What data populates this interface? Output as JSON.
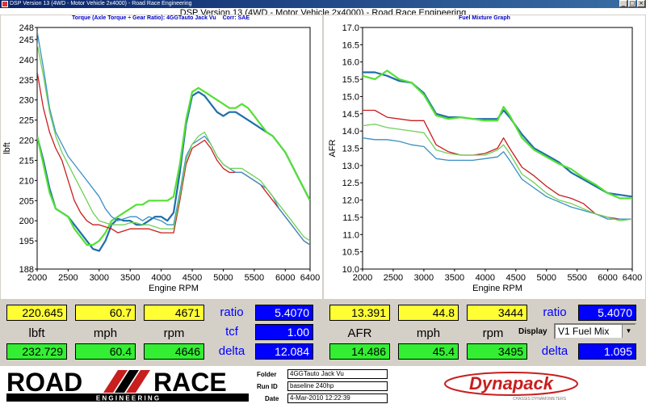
{
  "window": {
    "title": "DSP Version 13 (4WD - Motor Vehicle 2x4000) - Road Race Engineering",
    "heading": "DSP Version 13 (4WD - Motor Vehicle 2x4000) - Road Race Engineering",
    "buttons": [
      "_",
      "□",
      "×"
    ]
  },
  "colors": {
    "yellow": "#ffff33",
    "green": "#33ee33",
    "blue_box": "#0000ff",
    "series_dark_blue": "#1f6fa8",
    "series_light_green": "#55e035",
    "series_red": "#c81e1e",
    "series_light_blue": "#3a8fc4",
    "series_mid_green": "#6fd05a"
  },
  "left_panel": {
    "title": "Torque (Axle Torque ÷ Gear Ratio): 4GGTauto Jack Vu",
    "corr": "Corr: SAE",
    "ylabel": "lbft",
    "xlabel": "Engine RPM"
  },
  "right_panel": {
    "title": "Fuel Mixture Graph",
    "ylabel": "AFR",
    "xlabel": "Engine RPM"
  },
  "chart_data": [
    {
      "type": "line",
      "title": "Torque (Axle Torque ÷ Gear Ratio): 4GGTauto Jack Vu",
      "xlabel": "Engine RPM",
      "ylabel": "lbft",
      "xlim": [
        2000,
        6400
      ],
      "ylim": [
        188,
        248
      ],
      "x_ticks": [
        2000,
        2500,
        3000,
        3500,
        4000,
        4500,
        5000,
        5500,
        6000,
        6400
      ],
      "y_ticks": [
        188,
        195,
        200,
        205,
        210,
        215,
        220,
        225,
        230,
        235,
        240,
        245,
        248
      ],
      "grid": false,
      "series": [
        {
          "color": "#1f6fa8",
          "x": [
            2000,
            2100,
            2200,
            2300,
            2400,
            2500,
            2600,
            2700,
            2800,
            2900,
            3000,
            3100,
            3200,
            3300,
            3400,
            3500,
            3600,
            3700,
            3800,
            3900,
            4000,
            4100,
            4200,
            4300,
            4400,
            4500,
            4600,
            4700,
            4800,
            4900,
            5000,
            5100,
            5200,
            5300,
            5400,
            5500,
            5600,
            5700,
            5800,
            5900,
            6000,
            6100,
            6200,
            6300,
            6400
          ],
          "y": [
            221,
            215,
            208,
            203,
            202,
            201,
            199,
            197,
            195,
            193,
            192.5,
            195,
            199,
            200.5,
            200,
            200,
            199,
            199,
            200,
            201,
            201,
            200,
            202,
            212,
            224,
            231,
            232,
            231,
            229,
            227,
            226,
            227,
            227,
            226,
            225,
            224,
            223,
            222,
            221,
            219,
            217,
            214,
            211,
            208,
            205
          ]
        },
        {
          "color": "#55e035",
          "x": [
            2000,
            2100,
            2200,
            2300,
            2400,
            2500,
            2600,
            2700,
            2800,
            2900,
            3000,
            3100,
            3200,
            3300,
            3400,
            3500,
            3600,
            3700,
            3800,
            3900,
            4000,
            4100,
            4200,
            4300,
            4400,
            4500,
            4600,
            4700,
            4800,
            4900,
            5000,
            5100,
            5200,
            5300,
            5400,
            5500,
            5600,
            5700,
            5800,
            5900,
            6000,
            6100,
            6200,
            6300,
            6400
          ],
          "y": [
            221,
            214,
            207,
            203,
            202,
            201,
            198,
            196,
            194,
            194,
            195,
            197,
            200,
            201,
            202,
            203,
            204,
            204,
            205,
            205,
            205,
            205,
            206,
            214,
            225,
            232,
            233,
            232,
            231,
            230,
            229,
            228,
            228,
            229,
            228,
            226,
            224,
            222,
            221,
            219,
            217,
            214,
            211,
            208,
            205
          ]
        },
        {
          "color": "#c81e1e",
          "x": [
            2000,
            2100,
            2200,
            2300,
            2400,
            2500,
            2600,
            2700,
            2800,
            2900,
            3000,
            3100,
            3200,
            3300,
            3400,
            3500,
            3600,
            3700,
            3800,
            3900,
            4000,
            4100,
            4200,
            4300,
            4400,
            4500,
            4600,
            4700,
            4800,
            4900,
            5000,
            5100,
            5200,
            5300,
            5400,
            5500,
            5600,
            5700,
            5800,
            5900,
            6000,
            6100,
            6200,
            6300,
            6400
          ],
          "y": [
            237,
            228,
            222,
            218,
            215,
            210,
            205,
            202,
            200,
            199,
            199,
            198.5,
            198,
            197,
            197.5,
            198,
            198,
            198,
            198,
            197.5,
            197,
            197,
            197,
            205,
            214,
            218,
            219,
            220,
            218,
            215,
            213,
            212,
            212,
            212,
            211,
            210,
            209,
            207,
            205,
            203,
            201,
            199,
            197,
            195,
            194
          ]
        },
        {
          "color": "#3a8fc4",
          "x": [
            2000,
            2100,
            2200,
            2300,
            2400,
            2500,
            2600,
            2700,
            2800,
            2900,
            3000,
            3100,
            3200,
            3300,
            3400,
            3500,
            3600,
            3700,
            3800,
            3900,
            4000,
            4100,
            4200,
            4300,
            4400,
            4500,
            4600,
            4700,
            4800,
            4900,
            5000,
            5100,
            5200,
            5300,
            5400,
            5500,
            5600,
            5700,
            5800,
            5900,
            6000,
            6100,
            6200,
            6300,
            6400
          ],
          "y": [
            247,
            238,
            228,
            222,
            219,
            216,
            214,
            212,
            210,
            208,
            206,
            203,
            201,
            200,
            200.5,
            201,
            201,
            200,
            201,
            200.5,
            200,
            199,
            199,
            207,
            216,
            219,
            220,
            221,
            219,
            216,
            214,
            213,
            212,
            212,
            211,
            210,
            209,
            208,
            206,
            203,
            201,
            199,
            197,
            195,
            194
          ]
        },
        {
          "color": "#6fd05a",
          "x": [
            2000,
            2100,
            2200,
            2300,
            2400,
            2500,
            2600,
            2700,
            2800,
            2900,
            3000,
            3100,
            3200,
            3300,
            3400,
            3500,
            3600,
            3700,
            3800,
            3900,
            4000,
            4100,
            4200,
            4300,
            4400,
            4500,
            4600,
            4700,
            4800,
            4900,
            5000,
            5100,
            5200,
            5300,
            5400,
            5500,
            5600,
            5700,
            5800,
            5900,
            6000,
            6100,
            6200,
            6300,
            6400
          ],
          "y": [
            244,
            236,
            227,
            221,
            217,
            214,
            211,
            208,
            205,
            202,
            200,
            199.5,
            199,
            199,
            199,
            199.5,
            199.5,
            199,
            199,
            198.5,
            198,
            198,
            198,
            206,
            215,
            219,
            221,
            222,
            219,
            216,
            214,
            213,
            213,
            213,
            212,
            211,
            210,
            208,
            206,
            204,
            202,
            200,
            198,
            196,
            195
          ]
        }
      ]
    },
    {
      "type": "line",
      "title": "Fuel Mixture Graph",
      "xlabel": "Engine RPM",
      "ylabel": "AFR",
      "xlim": [
        2000,
        6400
      ],
      "ylim": [
        10.0,
        17.0
      ],
      "x_ticks": [
        2000,
        2500,
        3000,
        3500,
        4000,
        4500,
        5000,
        5500,
        6000,
        6400
      ],
      "y_ticks": [
        10.0,
        10.5,
        11.0,
        11.5,
        12.0,
        12.5,
        13.0,
        13.5,
        14.0,
        14.5,
        15.0,
        15.5,
        16.0,
        16.5,
        17.0
      ],
      "grid": false,
      "series": [
        {
          "color": "#1f6fa8",
          "x": [
            2000,
            2200,
            2400,
            2600,
            2800,
            3000,
            3200,
            3400,
            3600,
            3800,
            4000,
            4200,
            4300,
            4400,
            4600,
            4800,
            5000,
            5200,
            5400,
            5600,
            5800,
            6000,
            6200,
            6400
          ],
          "y": [
            15.7,
            15.7,
            15.6,
            15.45,
            15.4,
            15.1,
            14.5,
            14.4,
            14.4,
            14.35,
            14.35,
            14.35,
            14.6,
            14.4,
            13.9,
            13.5,
            13.3,
            13.1,
            12.8,
            12.6,
            12.4,
            12.2,
            12.15,
            12.1
          ]
        },
        {
          "color": "#55e035",
          "x": [
            2000,
            2200,
            2400,
            2600,
            2800,
            3000,
            3200,
            3400,
            3600,
            3800,
            4000,
            4200,
            4300,
            4400,
            4600,
            4800,
            5000,
            5200,
            5400,
            5600,
            5800,
            6000,
            6200,
            6400
          ],
          "y": [
            15.6,
            15.5,
            15.75,
            15.5,
            15.4,
            15.05,
            14.45,
            14.35,
            14.4,
            14.35,
            14.3,
            14.3,
            14.7,
            14.45,
            13.8,
            13.45,
            13.25,
            13.05,
            12.9,
            12.65,
            12.45,
            12.2,
            12.05,
            12.05
          ]
        },
        {
          "color": "#c81e1e",
          "x": [
            2000,
            2200,
            2400,
            2600,
            2800,
            3000,
            3200,
            3400,
            3600,
            3800,
            4000,
            4200,
            4300,
            4400,
            4600,
            4800,
            5000,
            5200,
            5400,
            5600,
            5800,
            6000,
            6200,
            6400
          ],
          "y": [
            14.6,
            14.6,
            14.4,
            14.35,
            14.3,
            14.3,
            13.6,
            13.4,
            13.3,
            13.3,
            13.35,
            13.5,
            13.8,
            13.5,
            12.95,
            12.7,
            12.4,
            12.15,
            12.05,
            11.9,
            11.6,
            11.5,
            11.45,
            11.45
          ]
        },
        {
          "color": "#3a8fc4",
          "x": [
            2000,
            2200,
            2400,
            2600,
            2800,
            3000,
            3200,
            3400,
            3600,
            3800,
            4000,
            4200,
            4300,
            4400,
            4600,
            4800,
            5000,
            5200,
            5400,
            5600,
            5800,
            6000,
            6200,
            6400
          ],
          "y": [
            13.8,
            13.75,
            13.75,
            13.7,
            13.6,
            13.55,
            13.2,
            13.15,
            13.15,
            13.15,
            13.2,
            13.25,
            13.4,
            13.15,
            12.6,
            12.35,
            12.1,
            11.95,
            11.8,
            11.7,
            11.6,
            11.45,
            11.45,
            11.45
          ]
        },
        {
          "color": "#6fd05a",
          "x": [
            2000,
            2200,
            2400,
            2600,
            2800,
            3000,
            3200,
            3400,
            3600,
            3800,
            4000,
            4200,
            4300,
            4400,
            4600,
            4800,
            5000,
            5200,
            5400,
            5600,
            5800,
            6000,
            6200,
            6400
          ],
          "y": [
            14.15,
            14.2,
            14.1,
            14.05,
            14.0,
            13.95,
            13.45,
            13.35,
            13.3,
            13.3,
            13.3,
            13.45,
            13.6,
            13.35,
            12.75,
            12.5,
            12.2,
            12.0,
            11.9,
            11.75,
            11.6,
            11.5,
            11.4,
            11.45
          ]
        }
      ]
    }
  ],
  "left_readout": {
    "row1": {
      "lbft": "220.645",
      "mph": "60.7",
      "rpm": "4671",
      "ratio_label": "ratio",
      "ratio": "5.4070"
    },
    "labels": {
      "lbft": "lbft",
      "mph": "mph",
      "rpm": "rpm",
      "tcf_label": "tcf"
    },
    "tcf": "1.00",
    "row3": {
      "lbft": "232.729",
      "mph": "60.4",
      "rpm": "4646",
      "delta_label": "delta",
      "delta": "12.084"
    }
  },
  "right_readout": {
    "row1": {
      "afr": "13.391",
      "mph": "44.8",
      "rpm": "3444",
      "ratio_label": "ratio",
      "ratio": "5.4070"
    },
    "labels": {
      "afr": "AFR",
      "mph": "mph",
      "rpm": "rpm",
      "display": "Display"
    },
    "display_select": "V1 Fuel Mix",
    "row3": {
      "afr": "14.486",
      "mph": "45.4",
      "rpm": "3495",
      "delta_label": "delta",
      "delta": "1.095"
    }
  },
  "footer": {
    "logo_top": "ROAD",
    "logo_right": "RACE",
    "logo_sub": "E N G I N E E R I N G",
    "folder_label": "Folder",
    "folder": "4GGTauto Jack Vu",
    "run_label": "Run ID",
    "run": "baseline 240hp",
    "date_label": "Date",
    "date": "4-Mar-2010 12:22:39",
    "dynapack": "Dynapack",
    "dynapack_sub": "CHASSIS DYNAMOMETERS"
  }
}
